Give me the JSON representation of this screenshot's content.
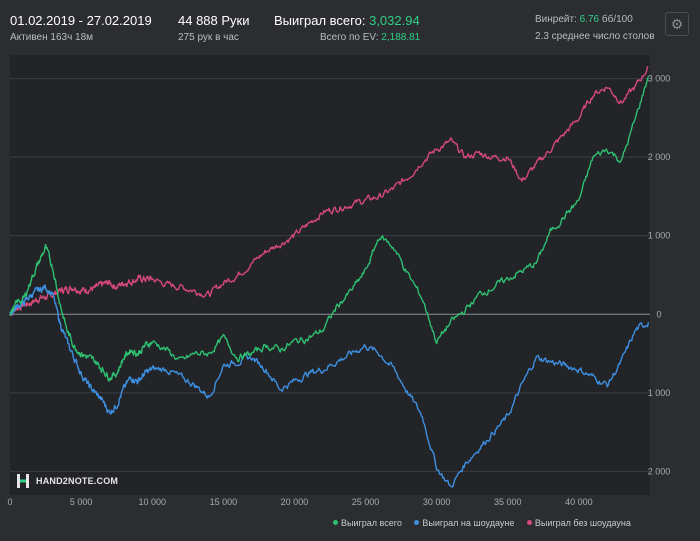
{
  "header": {
    "date_range": "01.02.2019 - 27.02.2019",
    "active_time": "Активен 163ч 18м",
    "hands_count": "44 888 Руки",
    "hands_per_hour": "275 рук в час",
    "won_label": "Выиграл всего:",
    "won_value": "3,032.94",
    "ev_label": "Всего по EV:",
    "ev_value": "2,188.81",
    "winrate_label": "Винрейт:",
    "winrate_value": "6.76",
    "winrate_unit": "бб/100",
    "tables_text": "2.3 среднее число столов",
    "settings_icon": "gear-icon"
  },
  "branding": {
    "logo_text": "HAND2NOTE.COM",
    "logo_icon": "hand2note-logo"
  },
  "colors": {
    "total": "#2fbf71",
    "showdown": "#3d8fe0",
    "non_showdown": "#d4487a",
    "accent": "#2fcf86"
  },
  "chart_data": {
    "type": "line",
    "title": "",
    "xlabel": "",
    "ylabel": "",
    "xlim": [
      0,
      45000
    ],
    "ylim": [
      -2300,
      3300
    ],
    "grid": true,
    "legend_position": "bottom-right",
    "x_ticks": [
      0,
      5000,
      10000,
      15000,
      20000,
      25000,
      30000,
      35000,
      40000
    ],
    "x_tick_labels": [
      "0",
      "5 000",
      "10 000",
      "15 000",
      "20 000",
      "25 000",
      "30 000",
      "35 000",
      "40 000"
    ],
    "y_ticks": [
      3000,
      2000,
      1000,
      0,
      -1000,
      -2000
    ],
    "y_tick_labels": [
      "3 000",
      "2 000",
      "1 000",
      "0",
      "1 000",
      "2 000"
    ],
    "x": [
      0,
      500,
      1000,
      1500,
      2000,
      2500,
      3000,
      3500,
      4000,
      4500,
      5000,
      5500,
      6000,
      6500,
      7000,
      7500,
      8000,
      8500,
      9000,
      9500,
      10000,
      11000,
      12000,
      13000,
      14000,
      15000,
      16000,
      17000,
      18000,
      19000,
      20000,
      21000,
      22000,
      23000,
      24000,
      25000,
      26000,
      27000,
      28000,
      29000,
      30000,
      31000,
      32000,
      33000,
      34000,
      35000,
      36000,
      37000,
      38000,
      39000,
      40000,
      41000,
      42000,
      43000,
      44000,
      44888
    ],
    "series": [
      {
        "name": "Выиграл всего",
        "values": [
          0,
          150,
          200,
          450,
          650,
          850,
          600,
          150,
          -200,
          -400,
          -500,
          -550,
          -600,
          -700,
          -800,
          -750,
          -550,
          -450,
          -500,
          -400,
          -350,
          -450,
          -600,
          -500,
          -500,
          -300,
          -550,
          -500,
          -400,
          -450,
          -350,
          -300,
          -200,
          100,
          300,
          550,
          1000,
          850,
          500,
          200,
          -350,
          -100,
          50,
          250,
          350,
          450,
          550,
          650,
          1050,
          1250,
          1450,
          2000,
          2100,
          1950,
          2500,
          3032.94
        ]
      },
      {
        "name": "Выиграл на шоудауне",
        "values": [
          0,
          100,
          150,
          250,
          300,
          350,
          250,
          -100,
          -350,
          -550,
          -750,
          -900,
          -1000,
          -1100,
          -1250,
          -1150,
          -950,
          -800,
          -850,
          -750,
          -700,
          -700,
          -800,
          -900,
          -1050,
          -650,
          -600,
          -550,
          -700,
          -950,
          -850,
          -750,
          -700,
          -600,
          -500,
          -400,
          -500,
          -700,
          -1000,
          -1300,
          -1950,
          -2200,
          -1900,
          -1700,
          -1500,
          -1300,
          -900,
          -550,
          -600,
          -650,
          -700,
          -800,
          -900,
          -600,
          -200,
          -100
        ]
      },
      {
        "name": "Выиграл без шоудауна",
        "values": [
          0,
          80,
          120,
          150,
          200,
          220,
          250,
          300,
          320,
          350,
          300,
          320,
          330,
          380,
          400,
          350,
          400,
          420,
          450,
          450,
          450,
          380,
          350,
          300,
          250,
          400,
          500,
          650,
          800,
          900,
          1000,
          1150,
          1300,
          1350,
          1400,
          1450,
          1500,
          1600,
          1750,
          1950,
          2100,
          2200,
          2000,
          2050,
          2000,
          2000,
          1700,
          1900,
          2100,
          2300,
          2500,
          2800,
          2900,
          2700,
          2900,
          3150
        ]
      }
    ]
  },
  "legend": [
    {
      "label": "Выиграл всего",
      "color": "#2fbf71"
    },
    {
      "label": "Выиграл на шоудауне",
      "color": "#3d8fe0"
    },
    {
      "label": "Выиграл без шоудауна",
      "color": "#d4487a"
    }
  ]
}
